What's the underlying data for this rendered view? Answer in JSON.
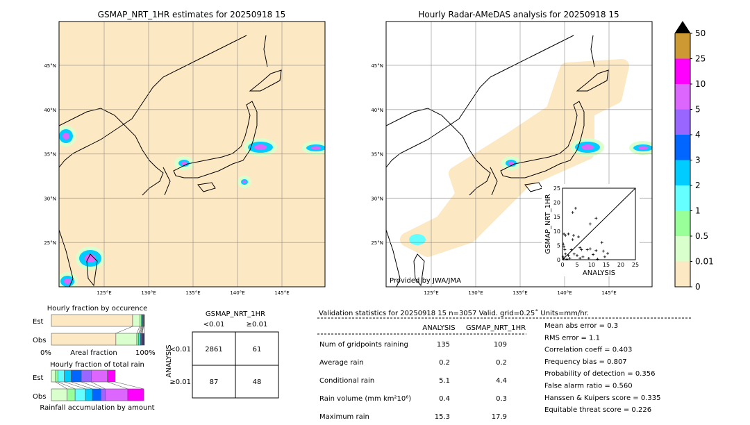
{
  "left_map": {
    "title": "GSMAP_NRT_1HR estimates for 20250918 15"
  },
  "right_map": {
    "title": "Hourly Radar-AMeDAS analysis for 20250918 15",
    "credit": "Provided by JWA/JMA"
  },
  "map_axes": {
    "lon_ticks": [
      "125°E",
      "130°E",
      "135°E",
      "140°E",
      "145°E"
    ],
    "lat_ticks": [
      "45°N",
      "40°N",
      "35°N",
      "30°N",
      "25°N"
    ]
  },
  "colorbar": {
    "labels": [
      "0",
      "0.01",
      "0.5",
      "1",
      "2",
      "3",
      "4",
      "5",
      "10",
      "25",
      "50"
    ],
    "colors": [
      "#fde8c4",
      "#d9ffcc",
      "#99ff99",
      "#66ffff",
      "#00ccff",
      "#0066ff",
      "#9966ff",
      "#dd66ff",
      "#ff00ff",
      "#cc9933"
    ],
    "extend_color": "#000000"
  },
  "chart_data": [
    {
      "type": "bar",
      "title": "Hourly fraction by occurence",
      "categories": [
        "Est",
        "Obs"
      ],
      "xlabel": "Areal fraction",
      "x_ticks": [
        "0%",
        "100%"
      ],
      "series": [
        {
          "values": [
            87.3,
            69.3
          ]
        },
        {
          "values": [
            7.7,
            22.5
          ]
        },
        {
          "values": [
            1.5,
            2.0
          ]
        },
        {
          "values": [
            0.8,
            1.2
          ]
        },
        {
          "values": [
            0.7,
            1.0
          ]
        },
        {
          "values": [
            0.7,
            1.0
          ]
        },
        {
          "values": [
            0.3,
            0.6
          ]
        },
        {
          "values": [
            1.0,
            2.4
          ]
        }
      ]
    },
    {
      "type": "bar",
      "title": "Hourly fraction of total rain",
      "categories": [
        "Est",
        "Obs"
      ],
      "xlabel": "Rainfall accumulation by amount",
      "series": [
        {
          "values": [
            4.5,
            16.9
          ]
        },
        {
          "values": [
            2.5,
            8.7
          ]
        },
        {
          "values": [
            7.0,
            11.2
          ]
        },
        {
          "values": [
            7.5,
            7.5
          ]
        },
        {
          "values": [
            10.9,
            9.2
          ]
        },
        {
          "values": [
            10.7,
            4.5
          ]
        },
        {
          "values": [
            17.6,
            24.4
          ]
        },
        {
          "values": [
            8.5,
            17.3
          ]
        }
      ]
    },
    {
      "type": "scatter",
      "xlabel": "ANALYSIS",
      "ylabel": "GSMAP_NRT_1HR",
      "xlim": [
        0,
        25
      ],
      "ylim": [
        0,
        25
      ],
      "ticks": [
        "0",
        "5",
        "10",
        "15",
        "20",
        "25"
      ],
      "points": [
        [
          3.5,
          16.5
        ],
        [
          4.5,
          18
        ],
        [
          9.5,
          12.5
        ],
        [
          11.5,
          14.5
        ],
        [
          13.5,
          6
        ],
        [
          0.5,
          9
        ],
        [
          1,
          8.5
        ],
        [
          2,
          9
        ],
        [
          3.8,
          8.5
        ],
        [
          5.5,
          8
        ],
        [
          3.5,
          7
        ],
        [
          0.3,
          5.5
        ],
        [
          0.5,
          4.5
        ],
        [
          0.8,
          3.5
        ],
        [
          1,
          2
        ],
        [
          2,
          1.5
        ],
        [
          3,
          3.5
        ],
        [
          4,
          2
        ],
        [
          6,
          4.2
        ],
        [
          6.5,
          3.5
        ],
        [
          8.5,
          3.5
        ],
        [
          9.5,
          3.8
        ],
        [
          10.5,
          1.8
        ],
        [
          11.5,
          3.2
        ],
        [
          14,
          3
        ],
        [
          15.5,
          2.2
        ],
        [
          14.5,
          1
        ],
        [
          7,
          1
        ],
        [
          9,
          0.5
        ],
        [
          5,
          1.5
        ],
        [
          2.5,
          0.5
        ],
        [
          0.2,
          1
        ],
        [
          0.4,
          0.3
        ],
        [
          1.5,
          0.2
        ],
        [
          12,
          0.2
        ],
        [
          6,
          0.5
        ]
      ]
    }
  ],
  "contingency": {
    "title": "GSMAP_NRT_1HR",
    "col_labels": [
      "<0.01",
      "≥0.01"
    ],
    "row_axis": "ANALYSIS",
    "row_labels": [
      "<0.01",
      "≥0.01"
    ],
    "cells": [
      [
        "2861",
        "61"
      ],
      [
        "87",
        "48"
      ]
    ]
  },
  "stats": {
    "header": "Validation statistics for 20250918 15  n=3057 Valid. grid=0.25˚ Units=mm/hr.",
    "col_headers": [
      "ANALYSIS",
      "GSMAP_NRT_1HR"
    ],
    "rows": [
      {
        "label": "Num of gridpoints raining",
        "a": "135",
        "g": "109"
      },
      {
        "label": "Average rain",
        "a": "0.2",
        "g": "0.2"
      },
      {
        "label": "Conditional rain",
        "a": "5.1",
        "g": "4.4"
      },
      {
        "label": "Rain volume (mm km²10⁶)",
        "a": "0.4",
        "g": "0.3"
      },
      {
        "label": "Maximum rain",
        "a": "15.3",
        "g": "17.9"
      }
    ],
    "scores": [
      "Mean abs error =    0.3",
      "RMS error =    1.1",
      "Correlation coeff =  0.403",
      "Frequency bias =  0.807",
      "Probability of detection =  0.356",
      "False alarm ratio =  0.560",
      "Hanssen & Kuipers score =  0.335",
      "Equitable threat score =  0.226"
    ]
  }
}
